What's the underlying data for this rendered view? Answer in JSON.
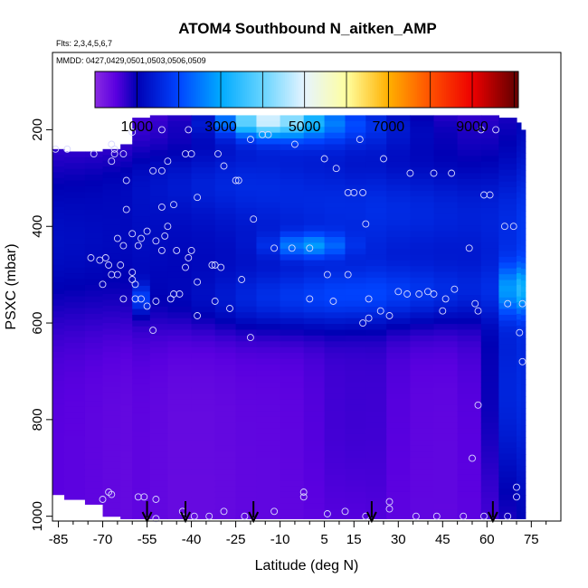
{
  "chart_data": {
    "type": "heatmap",
    "title": "ATOM4 Southbound N_aitken_AMP",
    "subtitle_flights": "Flts: 2,3,4,5,6,7",
    "subtitle_dates": "MMDD: 0427,0429,0501,0503,0506,0509",
    "xlabel": "Latitude (deg N)",
    "ylabel": "PSXC (mbar)",
    "xlim": [
      -87,
      85
    ],
    "ylim": [
      1010,
      40
    ],
    "x_ticks": [
      -85,
      -70,
      -55,
      -40,
      -25,
      -10,
      5,
      15,
      30,
      45,
      60,
      75
    ],
    "x_minor_ticks": [
      -80,
      -75,
      -65,
      -60,
      -50,
      -45,
      -35,
      -30,
      -20,
      -15,
      -5,
      0,
      10,
      20,
      25,
      35,
      40,
      50,
      55,
      65,
      70,
      80
    ],
    "y_ticks": [
      200,
      400,
      600,
      800,
      1000
    ],
    "colorbar": {
      "min": 0,
      "max": 10100,
      "ticks": [
        1000,
        3000,
        5000,
        7000,
        9000
      ],
      "stops": [
        {
          "v": 0,
          "c": "#8a2be2"
        },
        {
          "v": 500,
          "c": "#5a00e0"
        },
        {
          "v": 1000,
          "c": "#0000b4"
        },
        {
          "v": 2000,
          "c": "#0044ff"
        },
        {
          "v": 3000,
          "c": "#00aaff"
        },
        {
          "v": 4000,
          "c": "#66d4ff"
        },
        {
          "v": 5000,
          "c": "#e6f4ff"
        },
        {
          "v": 6000,
          "c": "#ffffa0"
        },
        {
          "v": 7000,
          "c": "#ffb000"
        },
        {
          "v": 8000,
          "c": "#ff5000"
        },
        {
          "v": 9000,
          "c": "#ee0000"
        },
        {
          "v": 10000,
          "c": "#6a0000"
        }
      ]
    },
    "field_columns": [
      {
        "lat": -87,
        "top": 240,
        "bottom": 955,
        "base": 500
      },
      {
        "lat": -83,
        "top": 245,
        "bottom": 965,
        "base": 480
      },
      {
        "lat": -76,
        "top": 245,
        "bottom": 975,
        "base": 450
      },
      {
        "lat": -70,
        "top": 240,
        "bottom": 1000,
        "base": 420
      },
      {
        "lat": -64,
        "top": 230,
        "bottom": 1005,
        "base": 400
      },
      {
        "lat": -60,
        "top": 175,
        "bottom": 1005,
        "base": 450
      },
      {
        "lat": -54,
        "top": 170,
        "bottom": 1005,
        "base": 420
      },
      {
        "lat": -48,
        "top": 170,
        "bottom": 1005,
        "base": 380
      },
      {
        "lat": -40,
        "top": 170,
        "bottom": 1005,
        "base": 380
      },
      {
        "lat": -32,
        "top": 170,
        "bottom": 1005,
        "base": 400
      },
      {
        "lat": -25,
        "top": 170,
        "bottom": 1005,
        "base": 430
      },
      {
        "lat": -18,
        "top": 170,
        "bottom": 1005,
        "base": 430
      },
      {
        "lat": -10,
        "top": 170,
        "bottom": 1005,
        "base": 420
      },
      {
        "lat": -2,
        "top": 170,
        "bottom": 1005,
        "base": 420
      },
      {
        "lat": 5,
        "top": 170,
        "bottom": 1005,
        "base": 420
      },
      {
        "lat": 12,
        "top": 170,
        "bottom": 1005,
        "base": 400
      },
      {
        "lat": 19,
        "top": 170,
        "bottom": 1005,
        "base": 450
      },
      {
        "lat": 26,
        "top": 170,
        "bottom": 1005,
        "base": 420
      },
      {
        "lat": 34,
        "top": 170,
        "bottom": 1005,
        "base": 420
      },
      {
        "lat": 42,
        "top": 170,
        "bottom": 1005,
        "base": 430
      },
      {
        "lat": 50,
        "top": 170,
        "bottom": 1005,
        "base": 470
      },
      {
        "lat": 58,
        "top": 170,
        "bottom": 1005,
        "base": 560
      },
      {
        "lat": 64,
        "top": 175,
        "bottom": 1005,
        "base": 720
      },
      {
        "lat": 70,
        "top": 185,
        "bottom": 1005,
        "base": 900
      },
      {
        "lat": 71.5,
        "top": 200,
        "bottom": 1005,
        "base": 950
      }
    ],
    "field_features": [
      {
        "lat": -15,
        "p": 180,
        "dlat": 14,
        "dp": 30,
        "amp": 2500
      },
      {
        "lat": -5,
        "p": 180,
        "dlat": 25,
        "dp": 40,
        "amp": 1400
      },
      {
        "lat": 5,
        "p": 200,
        "dlat": 40,
        "dp": 60,
        "amp": 900
      },
      {
        "lat": -30,
        "p": 300,
        "dlat": 35,
        "dp": 70,
        "amp": 600
      },
      {
        "lat": 25,
        "p": 350,
        "dlat": 45,
        "dp": 100,
        "amp": 600
      },
      {
        "lat": 0,
        "p": 440,
        "dlat": 12,
        "dp": 25,
        "amp": 1500
      },
      {
        "lat": 30,
        "p": 540,
        "dlat": 40,
        "dp": 60,
        "amp": 800
      },
      {
        "lat": -10,
        "p": 560,
        "dlat": 35,
        "dp": 60,
        "amp": 600
      },
      {
        "lat": 70,
        "p": 530,
        "dlat": 5,
        "dp": 50,
        "amp": 1500
      },
      {
        "lat": 68,
        "p": 750,
        "dlat": 8,
        "dp": 200,
        "amp": 800
      },
      {
        "lat": -56,
        "p": 550,
        "dlat": 2,
        "dp": 30,
        "amp": 1200
      },
      {
        "lat": 15,
        "p": 800,
        "dlat": 15,
        "dp": 250,
        "amp": 250
      }
    ],
    "sample_points": [
      [
        -86,
        240
      ],
      [
        -82,
        240
      ],
      [
        -73,
        250
      ],
      [
        -67,
        230
      ],
      [
        -66,
        250
      ],
      [
        -67,
        265
      ],
      [
        -66,
        240
      ],
      [
        -63,
        250
      ],
      [
        -60,
        205
      ],
      [
        -50,
        200
      ],
      [
        -41,
        200
      ],
      [
        -42,
        250
      ],
      [
        -40,
        250
      ],
      [
        -31,
        250
      ],
      [
        -29,
        275
      ],
      [
        -25,
        305
      ],
      [
        -20,
        220
      ],
      [
        -16,
        210
      ],
      [
        -14,
        210
      ],
      [
        -5,
        230
      ],
      [
        5,
        260
      ],
      [
        17,
        220
      ],
      [
        25,
        260
      ],
      [
        34,
        290
      ],
      [
        42,
        290
      ],
      [
        48,
        290
      ],
      [
        58,
        200
      ],
      [
        63,
        200
      ],
      [
        -62,
        305
      ],
      [
        -53,
        285
      ],
      [
        -50,
        285
      ],
      [
        -48,
        265
      ],
      [
        -50,
        360
      ],
      [
        -46,
        355
      ],
      [
        -48,
        400
      ],
      [
        -38,
        340
      ],
      [
        -24,
        305
      ],
      [
        -19,
        385
      ],
      [
        9,
        280
      ],
      [
        13,
        330
      ],
      [
        15,
        330
      ],
      [
        18,
        330
      ],
      [
        19,
        395
      ],
      [
        59,
        335
      ],
      [
        61,
        335
      ],
      [
        -60,
        415
      ],
      [
        -65,
        425
      ],
      [
        -63,
        440
      ],
      [
        -58,
        440
      ],
      [
        -57,
        425
      ],
      [
        -55,
        410
      ],
      [
        -52,
        430
      ],
      [
        -50,
        450
      ],
      [
        -45,
        450
      ],
      [
        -49,
        420
      ],
      [
        -40,
        450
      ],
      [
        -41,
        465
      ],
      [
        -42,
        485
      ],
      [
        -30,
        485
      ],
      [
        -33,
        480
      ],
      [
        -32,
        480
      ],
      [
        -23,
        510
      ],
      [
        -69,
        465
      ],
      [
        -74,
        465
      ],
      [
        -68,
        480
      ],
      [
        -67,
        500
      ],
      [
        -71,
        470
      ],
      [
        -64,
        480
      ],
      [
        -65,
        500
      ],
      [
        -60,
        495
      ],
      [
        -60,
        510
      ],
      [
        -59,
        520
      ],
      [
        -70,
        520
      ],
      [
        -63,
        550
      ],
      [
        -59,
        550
      ],
      [
        -57,
        550
      ],
      [
        -55,
        565
      ],
      [
        -47,
        550
      ],
      [
        -46,
        540
      ],
      [
        -44,
        540
      ],
      [
        -38,
        515
      ],
      [
        -38,
        585
      ],
      [
        -32,
        555
      ],
      [
        -27,
        570
      ],
      [
        -20,
        630
      ],
      [
        -53,
        615
      ],
      [
        -52,
        555
      ],
      [
        -62,
        365
      ],
      [
        -6,
        445
      ],
      [
        -12,
        445
      ],
      [
        0,
        445
      ],
      [
        6,
        500
      ],
      [
        13,
        500
      ],
      [
        0,
        550
      ],
      [
        8,
        555
      ],
      [
        20,
        550
      ],
      [
        18,
        600
      ],
      [
        20,
        590
      ],
      [
        24,
        575
      ],
      [
        27,
        585
      ],
      [
        30,
        535
      ],
      [
        33,
        540
      ],
      [
        37,
        540
      ],
      [
        40,
        535
      ],
      [
        42,
        540
      ],
      [
        46,
        550
      ],
      [
        49,
        530
      ],
      [
        56,
        560
      ],
      [
        67,
        560
      ],
      [
        45,
        575
      ],
      [
        57,
        575
      ],
      [
        54,
        445
      ],
      [
        66,
        400
      ],
      [
        69,
        400
      ],
      [
        72,
        560
      ],
      [
        71,
        620
      ],
      [
        72,
        680
      ],
      [
        -67,
        955
      ],
      [
        -70,
        965
      ],
      [
        -68,
        950
      ],
      [
        -58,
        960
      ],
      [
        -56,
        960
      ],
      [
        -52,
        965
      ],
      [
        -43,
        990
      ],
      [
        -39,
        1000
      ],
      [
        -34,
        1000
      ],
      [
        -29,
        990
      ],
      [
        -22,
        1000
      ],
      [
        -12,
        990
      ],
      [
        -2,
        950
      ],
      [
        -2,
        960
      ],
      [
        6,
        995
      ],
      [
        12,
        990
      ],
      [
        19,
        1000
      ],
      [
        27,
        970
      ],
      [
        27,
        985
      ],
      [
        36,
        1000
      ],
      [
        43,
        1000
      ],
      [
        52,
        1000
      ],
      [
        59,
        1000
      ],
      [
        67,
        1000
      ],
      [
        70,
        940
      ],
      [
        70,
        960
      ],
      [
        57,
        770
      ],
      [
        55,
        880
      ],
      [
        -52,
        1005
      ]
    ],
    "arrow_lats": [
      -55,
      -42,
      -19,
      21,
      62
    ]
  }
}
